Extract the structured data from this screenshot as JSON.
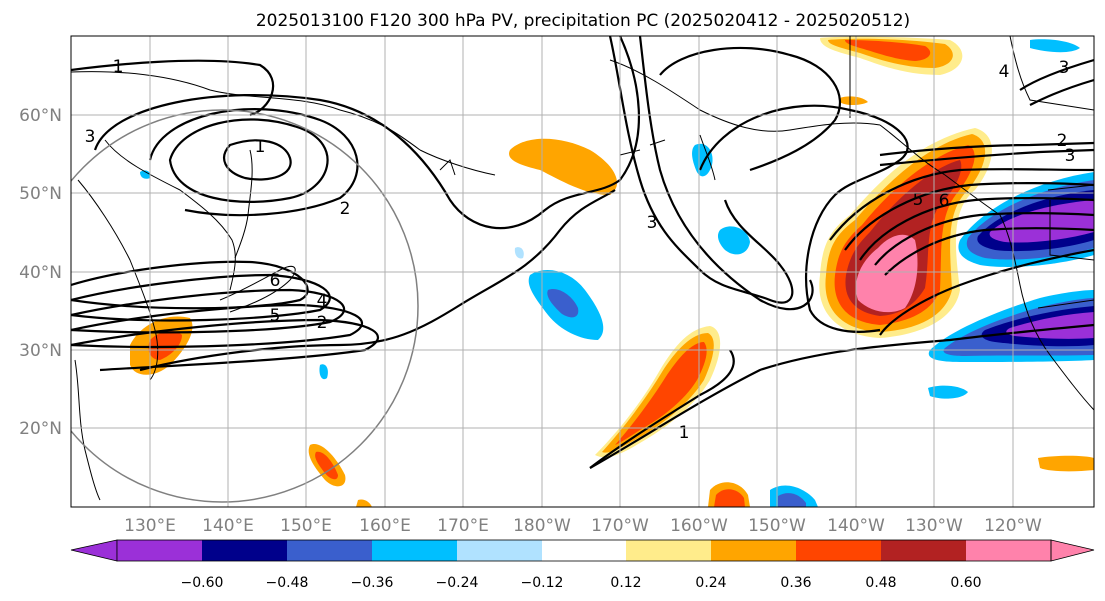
{
  "title": "2025013100 F120 300 hPa PV, precipitation PC (2025020412 - 2025020512)",
  "lon_labels": [
    "130°E",
    "140°E",
    "150°E",
    "160°E",
    "170°E",
    "180°W",
    "170°W",
    "160°W",
    "150°W",
    "140°W",
    "130°W",
    "120°W"
  ],
  "lat_labels": [
    "60°N",
    "50°N",
    "40°N",
    "30°N",
    "20°N"
  ],
  "colorbar": {
    "ticks": [
      "−0.60",
      "−0.48",
      "−0.36",
      "−0.24",
      "−0.12",
      "0.12",
      "0.24",
      "0.36",
      "0.48",
      "0.60"
    ],
    "colors": [
      "#9b30d8",
      "#00008b",
      "#3a5fcd",
      "#00bfff",
      "#b0e2ff",
      "#ffffff",
      "#ffec8b",
      "#ffa500",
      "#ff4500",
      "#b22222",
      "#ff82ab"
    ]
  },
  "pv_contour_labels": [
    "1",
    "2",
    "3",
    "4",
    "5",
    "6",
    "1",
    "2",
    "3",
    "4",
    "5",
    "6",
    "3",
    "2",
    "3",
    "1"
  ]
}
